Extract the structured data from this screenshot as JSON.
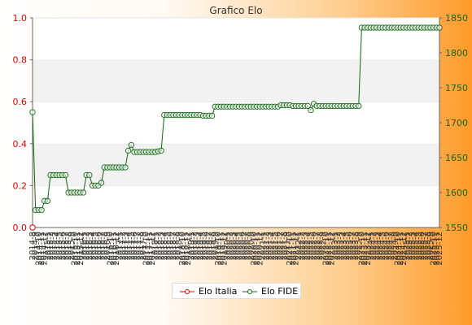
{
  "chart_data": {
    "type": "line",
    "title": "Grafico Elo",
    "xlabel": "",
    "ylabel_left": "",
    "ylabel_right": "",
    "ylim_left": [
      0.0,
      1.0
    ],
    "ylim_right": [
      1550,
      1850
    ],
    "yticks_left": [
      "0.0",
      "0.2",
      "0.4",
      "0.6",
      "0.8",
      "1.0"
    ],
    "yticks_right": [
      "1550",
      "1600",
      "1650",
      "1700",
      "1750",
      "1800",
      "1850"
    ],
    "grid": "horizontal bands",
    "legend_position": "bottom-center",
    "series": [
      {
        "name": "Elo Italia",
        "axis": "left",
        "color": "#dd0000",
        "values": [
          0
        ]
      },
      {
        "name": "Elo FIDE",
        "axis": "right",
        "color": "#116611",
        "values": [
          1715,
          1575,
          1575,
          1575,
          1588,
          1588,
          1625,
          1625,
          1625,
          1625,
          1625,
          1625,
          1600,
          1600,
          1600,
          1600,
          1600,
          1600,
          1625,
          1625,
          1610,
          1610,
          1610,
          1614,
          1636,
          1636,
          1636,
          1636,
          1636,
          1636,
          1636,
          1636,
          1660,
          1668,
          1658,
          1658,
          1658,
          1658,
          1658,
          1658,
          1658,
          1658,
          1659,
          1660,
          1711,
          1711,
          1711,
          1711,
          1711,
          1711,
          1711,
          1711,
          1711,
          1711,
          1711,
          1711,
          1711,
          1710,
          1710,
          1710,
          1710,
          1723,
          1723,
          1723,
          1723,
          1723,
          1723,
          1723,
          1723,
          1723,
          1723,
          1723,
          1723,
          1723,
          1723,
          1723,
          1723,
          1723,
          1723,
          1723,
          1723,
          1723,
          1723,
          1725,
          1725,
          1725,
          1725,
          1724,
          1724,
          1724,
          1724,
          1724,
          1724,
          1718,
          1727,
          1724,
          1724,
          1724,
          1724,
          1724,
          1724,
          1724,
          1724,
          1724,
          1724,
          1724,
          1724,
          1724,
          1724,
          1724,
          1836,
          1836,
          1836,
          1836,
          1836,
          1836,
          1836,
          1836,
          1836,
          1836,
          1836,
          1836,
          1836,
          1836,
          1836,
          1836,
          1836,
          1836,
          1836,
          1836,
          1836,
          1836,
          1836,
          1836,
          1836,
          1836,
          1836
        ]
      }
    ],
    "x_labels": [
      "2014-8",
      "2014-9",
      "2014-10",
      "2014-11",
      "2014-12",
      "2015-1",
      "2015-2",
      "2015-3",
      "2015-4",
      "2015-5",
      "2015-6",
      "2015-7",
      "2015-8",
      "2015-9",
      "2015-10",
      "2015-11",
      "2015-12",
      "2016-1",
      "2016-2",
      "2016-3",
      "2016-4",
      "2016-5",
      "2016-6",
      "2016-7",
      "2016-8",
      "2016-9",
      "2016-10",
      "2016-11",
      "2016-12",
      "2017-1",
      "2017-2",
      "2017-3",
      "2017-4",
      "2017-5",
      "2017-6",
      "2017-7",
      "2017-8",
      "2017-9",
      "2017-10",
      "2017-11",
      "2017-12",
      "2018-1",
      "2018-2",
      "2018-3",
      "2018-4",
      "2018-5",
      "2018-6",
      "2018-7",
      "2018-8",
      "2018-9",
      "2018-10",
      "2018-11",
      "2018-12",
      "2019-1",
      "2019-2",
      "2019-3",
      "2019-4",
      "2019-5",
      "2019-6",
      "2019-7",
      "2019-8",
      "2019-9",
      "2019-10",
      "2019-11",
      "2019-12",
      "2020-1",
      "2020-2",
      "2020-3",
      "2020-4",
      "2020-5",
      "2020-6",
      "2020-7",
      "2020-8",
      "2020-9",
      "2020-10",
      "2020-11",
      "2020-12",
      "2021-1",
      "2021-2",
      "2021-3",
      "2021-4",
      "2021-5",
      "2021-6",
      "2021-7",
      "2021-8",
      "2021-9",
      "2021-10",
      "2021-11",
      "2021-12",
      "2022-1",
      "2022-2",
      "2022-3",
      "2022-4",
      "2022-5",
      "2022-6",
      "2022-7",
      "2022-8",
      "2022-9",
      "2022-10",
      "2022-11",
      "2022-12",
      "2023-1",
      "2023-2",
      "2023-3",
      "2023-4",
      "2023-5",
      "2023-6",
      "2023-7",
      "2023-8",
      "2023-9",
      "2023-10",
      "2023-11",
      "2023-12",
      "2024-1",
      "2024-2",
      "2024-3",
      "2024-4",
      "2024-5",
      "2024-6",
      "2024-7",
      "2024-8",
      "2024-9",
      "2024-10",
      "2024-11",
      "2024-12",
      "2025-1",
      "2025-2",
      "2025-3",
      "2025-4",
      "2025-5",
      "2025-6",
      "2025-7",
      "2025-8",
      "2025-9",
      "2025-10",
      "2025-11",
      "2025-12"
    ]
  }
}
